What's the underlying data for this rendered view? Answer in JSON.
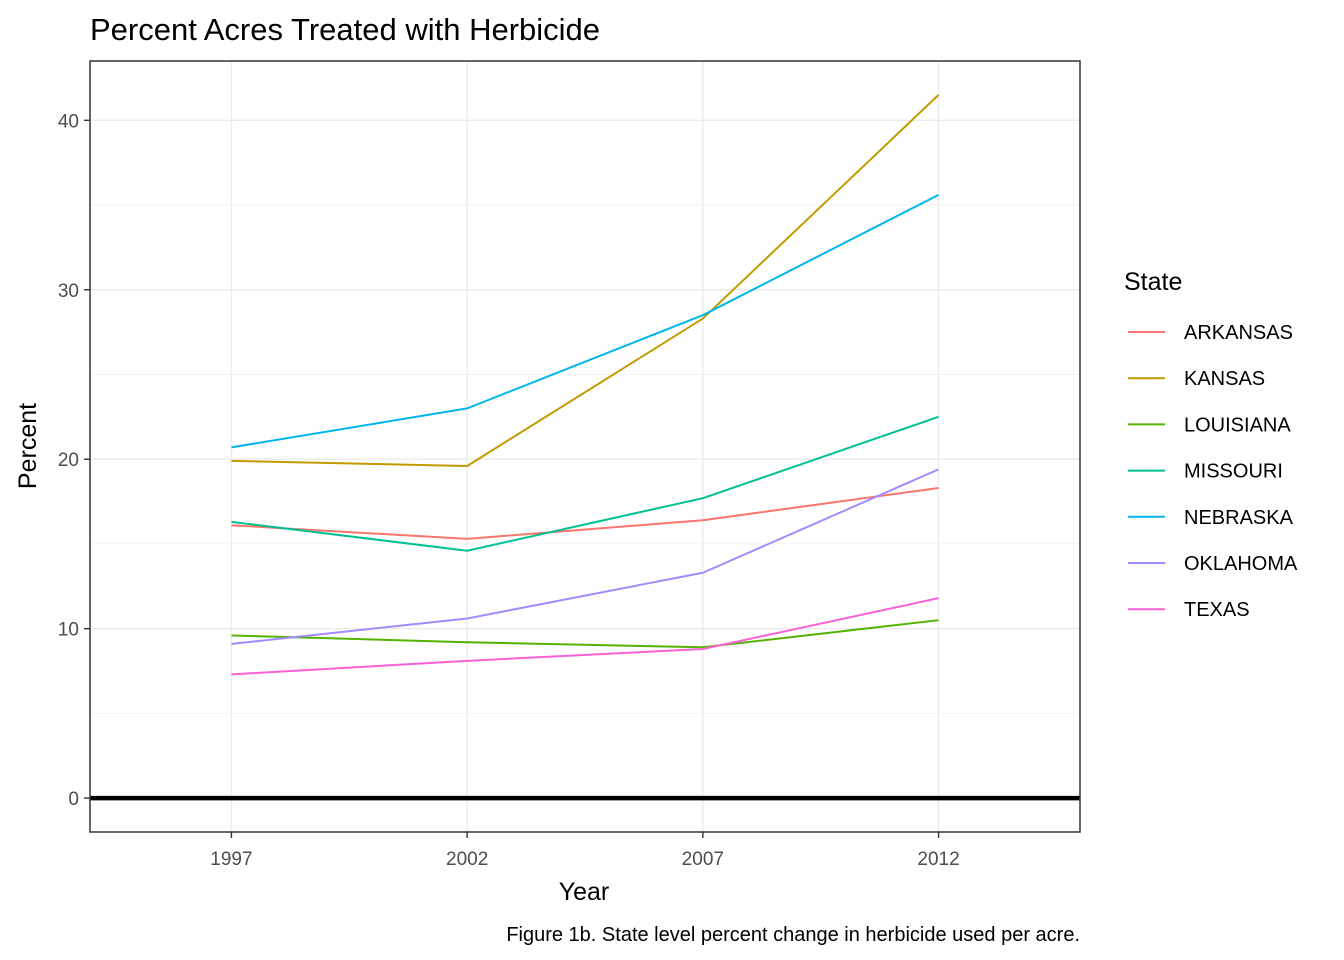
{
  "chart_data": {
    "type": "line",
    "title": "Percent Acres Treated with Herbicide",
    "xlabel": "Year",
    "ylabel": "Percent",
    "caption": "Figure 1b. State level percent change in herbicide used per acre.",
    "x": [
      1997,
      2002,
      2007,
      2012
    ],
    "xticks": [
      "1997",
      "2002",
      "2007",
      "2012"
    ],
    "xlim": [
      1994,
      2015
    ],
    "yticks": [
      "0",
      "10",
      "20",
      "30",
      "40"
    ],
    "ylim": [
      -2,
      43.5
    ],
    "grid": true,
    "hline": 0,
    "legend_title": "State",
    "legend_position": "right",
    "series": [
      {
        "name": "ARKANSAS",
        "color": "#F8766D",
        "values": [
          16.1,
          15.3,
          16.4,
          18.3
        ]
      },
      {
        "name": "KANSAS",
        "color": "#C49A00",
        "values": [
          19.9,
          19.6,
          28.3,
          41.5
        ]
      },
      {
        "name": "LOUISIANA",
        "color": "#53B400",
        "values": [
          9.6,
          9.2,
          8.9,
          10.5
        ]
      },
      {
        "name": "MISSOURI",
        "color": "#00C094",
        "values": [
          16.3,
          14.6,
          17.7,
          22.5
        ]
      },
      {
        "name": "NEBRASKA",
        "color": "#00B6EB",
        "values": [
          20.7,
          23.0,
          28.5,
          35.6
        ]
      },
      {
        "name": "OKLAHOMA",
        "color": "#A58AFF",
        "values": [
          9.1,
          10.6,
          13.3,
          19.4
        ]
      },
      {
        "name": "TEXAS",
        "color": "#FB61D7",
        "values": [
          7.3,
          8.1,
          8.8,
          11.8
        ]
      }
    ]
  }
}
